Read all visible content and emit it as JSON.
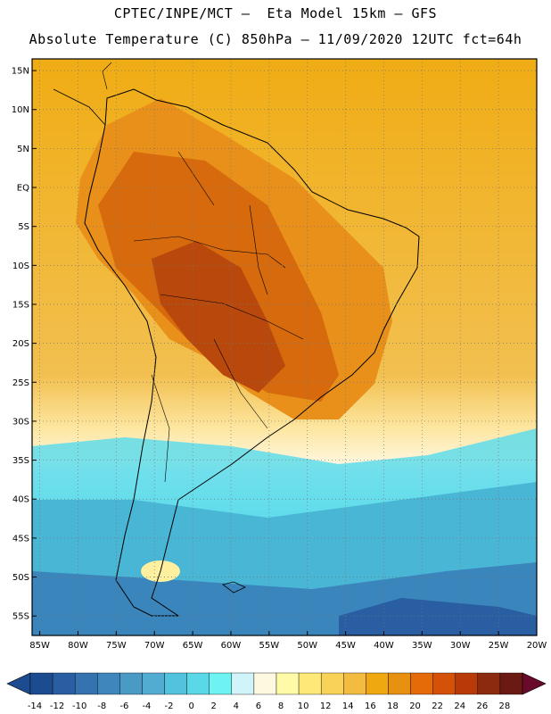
{
  "header": {
    "line1": "CPTEC/INPE/MCT –  Eta Model 15km – GFS",
    "line2": "Absolute Temperature (C) 850hPa – 11/09/2020 12UTC fct=64h"
  },
  "map": {
    "lat_labels": [
      "15N",
      "10N",
      "5N",
      "EQ",
      "5S",
      "10S",
      "15S",
      "20S",
      "25S",
      "30S",
      "35S",
      "40S",
      "45S",
      "50S",
      "55S"
    ],
    "lat_values": [
      15,
      10,
      5,
      0,
      -5,
      -10,
      -15,
      -20,
      -25,
      -30,
      -35,
      -40,
      -45,
      -50,
      -55
    ],
    "lon_labels": [
      "85W",
      "80W",
      "75W",
      "70W",
      "65W",
      "60W",
      "55W",
      "50W",
      "45W",
      "40W",
      "35W",
      "30W",
      "25W",
      "20W"
    ],
    "lon_values": [
      -85,
      -80,
      -75,
      -70,
      -65,
      -60,
      -55,
      -50,
      -45,
      -40,
      -35,
      -30,
      -25,
      -20
    ],
    "lat_range": [
      -57.5,
      16.5
    ],
    "lon_range": [
      -86,
      -20
    ]
  },
  "colorbar": {
    "labels": [
      "-14",
      "-12",
      "-10",
      "-8",
      "-6",
      "-4",
      "-2",
      "0",
      "2",
      "4",
      "6",
      "8",
      "10",
      "12",
      "14",
      "16",
      "18",
      "20",
      "22",
      "24",
      "26",
      "28"
    ],
    "colors": [
      "#1d4b8f",
      "#2a5ea3",
      "#3572b0",
      "#3f86bd",
      "#4a9ac6",
      "#52acd1",
      "#52c3de",
      "#5ad8e8",
      "#6ef2f2",
      "#d0f4fa",
      "#fff8e0",
      "#fffaa8",
      "#fde878",
      "#f9d258",
      "#f3bc40",
      "#efa810",
      "#e89010",
      "#e56a08",
      "#d45208",
      "#b83a08",
      "#8c2a10",
      "#6a1a12"
    ]
  }
}
